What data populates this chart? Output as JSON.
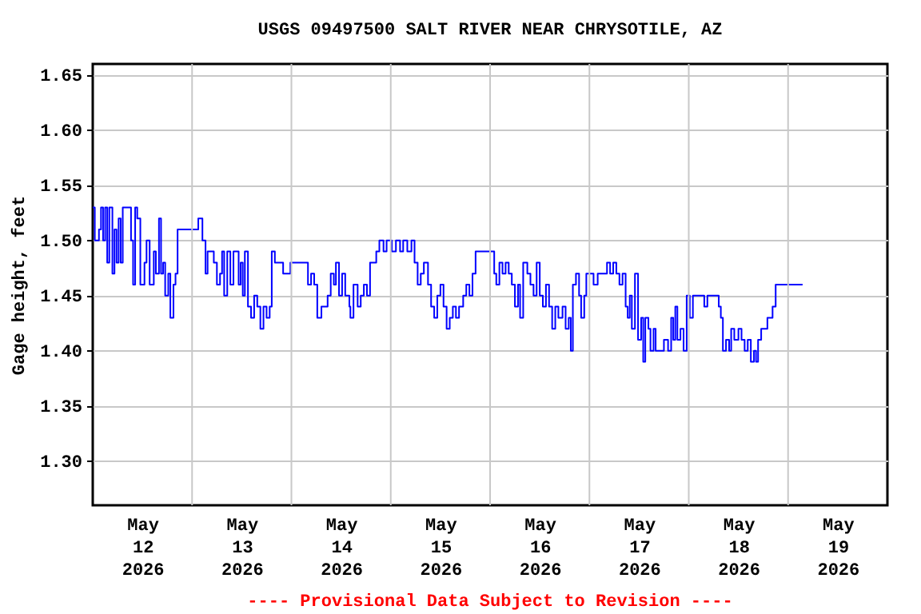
{
  "chart_data": {
    "type": "step",
    "title": "USGS 09497500 SALT RIVER NEAR CHRYSOTILE, AZ",
    "ylabel": "Gage height, feet",
    "annotations": [
      "---- Provisional Data Subject to Revision ----"
    ],
    "grid": true,
    "xlim": [
      "2026-05-12T00:00",
      "2026-05-20T00:00"
    ],
    "xticks": [
      {
        "value": "2026-05-12T12:00",
        "label": "May\n12\n2026"
      },
      {
        "value": "2026-05-13T00:00",
        "label": null
      },
      {
        "value": "2026-05-13T12:00",
        "label": "May\n13\n2026"
      },
      {
        "value": "2026-05-14T00:00",
        "label": null
      },
      {
        "value": "2026-05-14T12:00",
        "label": "May\n14\n2026"
      },
      {
        "value": "2026-05-15T00:00",
        "label": null
      },
      {
        "value": "2026-05-15T12:00",
        "label": "May\n15\n2026"
      },
      {
        "value": "2026-05-16T00:00",
        "label": null
      },
      {
        "value": "2026-05-16T12:00",
        "label": "May\n16\n2026"
      },
      {
        "value": "2026-05-17T00:00",
        "label": null
      },
      {
        "value": "2026-05-17T12:00",
        "label": "May\n17\n2026"
      },
      {
        "value": "2026-05-18T00:00",
        "label": null
      },
      {
        "value": "2026-05-18T12:00",
        "label": "May\n18\n2026"
      },
      {
        "value": "2026-05-19T00:00",
        "label": null
      },
      {
        "value": "2026-05-19T12:00",
        "label": "May\n19\n2026"
      }
    ],
    "ylim": [
      1.26,
      1.66
    ],
    "yticks": [
      {
        "value": 1.3,
        "label": "1.30"
      },
      {
        "value": 1.35,
        "label": "1.35"
      },
      {
        "value": 1.4,
        "label": "1.40"
      },
      {
        "value": 1.45,
        "label": "1.45"
      },
      {
        "value": 1.5,
        "label": "1.50"
      },
      {
        "value": 1.55,
        "label": "1.55"
      },
      {
        "value": 1.6,
        "label": "1.60"
      },
      {
        "value": 1.65,
        "label": "1.65"
      }
    ],
    "series": [
      {
        "color": "#0000ff",
        "x": [
          "2026-05-12T00:00",
          "2026-05-12T00:30",
          "2026-05-12T01:30",
          "2026-05-12T02:00",
          "2026-05-12T02:30",
          "2026-05-12T03:00",
          "2026-05-12T03:30",
          "2026-05-12T04:00",
          "2026-05-12T04:45",
          "2026-05-12T05:15",
          "2026-05-12T05:45",
          "2026-05-12T06:15",
          "2026-05-12T06:45",
          "2026-05-12T07:15",
          "2026-05-12T08:15",
          "2026-05-12T09:15",
          "2026-05-12T09:45",
          "2026-05-12T10:15",
          "2026-05-12T10:45",
          "2026-05-12T11:30",
          "2026-05-12T12:30",
          "2026-05-12T13:00",
          "2026-05-12T13:45",
          "2026-05-12T14:45",
          "2026-05-12T15:15",
          "2026-05-12T16:00",
          "2026-05-12T16:30",
          "2026-05-12T17:00",
          "2026-05-12T17:30",
          "2026-05-12T18:15",
          "2026-05-12T18:45",
          "2026-05-12T19:30",
          "2026-05-12T20:00",
          "2026-05-12T20:30",
          "2026-05-12T21:30",
          "2026-05-13T01:00",
          "2026-05-13T01:30",
          "2026-05-13T02:30",
          "2026-05-13T03:15",
          "2026-05-13T03:45",
          "2026-05-13T04:30",
          "2026-05-13T05:15",
          "2026-05-13T06:00",
          "2026-05-13T06:45",
          "2026-05-13T07:15",
          "2026-05-13T07:45",
          "2026-05-13T08:30",
          "2026-05-13T09:15",
          "2026-05-13T10:00",
          "2026-05-13T10:45",
          "2026-05-13T11:15",
          "2026-05-13T11:45",
          "2026-05-13T12:15",
          "2026-05-13T12:45",
          "2026-05-13T13:30",
          "2026-05-13T14:15",
          "2026-05-13T15:00",
          "2026-05-13T15:45",
          "2026-05-13T16:30",
          "2026-05-13T17:15",
          "2026-05-13T18:00",
          "2026-05-13T18:45",
          "2026-05-13T19:15",
          "2026-05-13T20:00",
          "2026-05-13T21:15",
          "2026-05-13T22:00",
          "2026-05-13T23:00",
          "2026-05-13T23:45",
          "2026-05-14T00:30",
          "2026-05-14T03:00",
          "2026-05-14T04:00",
          "2026-05-14T04:45",
          "2026-05-14T05:30",
          "2026-05-14T06:15",
          "2026-05-14T07:15",
          "2026-05-14T08:00",
          "2026-05-14T08:45",
          "2026-05-14T09:30",
          "2026-05-14T10:15",
          "2026-05-14T10:45",
          "2026-05-14T11:30",
          "2026-05-14T12:15",
          "2026-05-14T13:00",
          "2026-05-14T14:00",
          "2026-05-14T14:15",
          "2026-05-14T15:00",
          "2026-05-14T16:00",
          "2026-05-14T16:45",
          "2026-05-14T17:30",
          "2026-05-14T18:15",
          "2026-05-14T19:00",
          "2026-05-14T19:45",
          "2026-05-14T20:30",
          "2026-05-14T21:15",
          "2026-05-14T22:15",
          "2026-05-14T23:00",
          "2026-05-15T00:15",
          "2026-05-15T01:15",
          "2026-05-15T02:15",
          "2026-05-15T03:00",
          "2026-05-15T04:00",
          "2026-05-15T05:00",
          "2026-05-15T05:45",
          "2026-05-15T06:30",
          "2026-05-15T07:15",
          "2026-05-15T08:00",
          "2026-05-15T09:00",
          "2026-05-15T09:45",
          "2026-05-15T10:30",
          "2026-05-15T11:15",
          "2026-05-15T12:00",
          "2026-05-15T12:45",
          "2026-05-15T13:30",
          "2026-05-15T14:15",
          "2026-05-15T15:00",
          "2026-05-15T15:45",
          "2026-05-15T16:30",
          "2026-05-15T17:30",
          "2026-05-15T18:15",
          "2026-05-15T19:00",
          "2026-05-15T19:45",
          "2026-05-15T20:30",
          "2026-05-15T21:30",
          "2026-05-16T00:00",
          "2026-05-16T01:00",
          "2026-05-16T01:30",
          "2026-05-16T02:15",
          "2026-05-16T03:00",
          "2026-05-16T03:45",
          "2026-05-16T04:30",
          "2026-05-16T05:15",
          "2026-05-16T06:00",
          "2026-05-16T06:45",
          "2026-05-16T07:15",
          "2026-05-16T08:00",
          "2026-05-16T09:00",
          "2026-05-16T09:45",
          "2026-05-16T10:30",
          "2026-05-16T11:15",
          "2026-05-16T12:00",
          "2026-05-16T12:45",
          "2026-05-16T13:30",
          "2026-05-16T14:15",
          "2026-05-16T15:00",
          "2026-05-16T15:45",
          "2026-05-16T16:30",
          "2026-05-16T17:30",
          "2026-05-16T18:15",
          "2026-05-16T19:00",
          "2026-05-16T19:30",
          "2026-05-16T20:00",
          "2026-05-16T20:45",
          "2026-05-16T21:30",
          "2026-05-16T22:00",
          "2026-05-16T22:45",
          "2026-05-16T23:15",
          "2026-05-17T00:30",
          "2026-05-17T01:00",
          "2026-05-17T02:00",
          "2026-05-17T04:15",
          "2026-05-17T05:00",
          "2026-05-17T05:45",
          "2026-05-17T06:30",
          "2026-05-17T07:15",
          "2026-05-17T08:00",
          "2026-05-17T08:45",
          "2026-05-17T09:15",
          "2026-05-17T09:45",
          "2026-05-17T10:15",
          "2026-05-17T11:00",
          "2026-05-17T11:45",
          "2026-05-17T12:30",
          "2026-05-17T13:00",
          "2026-05-17T13:30",
          "2026-05-17T14:15",
          "2026-05-17T14:45",
          "2026-05-17T15:30",
          "2026-05-17T16:00",
          "2026-05-17T17:15",
          "2026-05-17T18:00",
          "2026-05-17T19:00",
          "2026-05-17T19:45",
          "2026-05-17T20:15",
          "2026-05-17T20:45",
          "2026-05-17T21:15",
          "2026-05-17T22:00",
          "2026-05-17T22:45",
          "2026-05-17T23:30",
          "2026-05-18T00:15",
          "2026-05-18T01:00",
          "2026-05-18T02:15",
          "2026-05-18T03:45",
          "2026-05-18T04:30",
          "2026-05-18T06:30",
          "2026-05-18T07:15",
          "2026-05-18T07:45",
          "2026-05-18T08:15",
          "2026-05-18T09:00",
          "2026-05-18T09:45",
          "2026-05-18T10:15",
          "2026-05-18T11:00",
          "2026-05-18T12:00",
          "2026-05-18T12:45",
          "2026-05-18T13:30",
          "2026-05-18T14:15",
          "2026-05-18T15:00",
          "2026-05-18T15:45",
          "2026-05-18T16:15",
          "2026-05-18T16:45",
          "2026-05-18T17:30",
          "2026-05-18T18:15",
          "2026-05-18T19:00",
          "2026-05-18T20:00",
          "2026-05-18T20:15",
          "2026-05-18T21:00",
          "2026-05-19T03:30"
        ],
        "values": [
          1.53,
          1.5,
          1.51,
          1.53,
          1.5,
          1.53,
          1.48,
          1.53,
          1.47,
          1.51,
          1.48,
          1.52,
          1.48,
          1.53,
          1.53,
          1.5,
          1.46,
          1.53,
          1.52,
          1.46,
          1.48,
          1.5,
          1.46,
          1.49,
          1.47,
          1.52,
          1.47,
          1.48,
          1.45,
          1.47,
          1.43,
          1.46,
          1.47,
          1.51,
          1.51,
          1.51,
          1.52,
          1.5,
          1.47,
          1.49,
          1.49,
          1.48,
          1.46,
          1.47,
          1.49,
          1.45,
          1.49,
          1.46,
          1.49,
          1.49,
          1.46,
          1.48,
          1.45,
          1.49,
          1.44,
          1.43,
          1.45,
          1.44,
          1.42,
          1.44,
          1.43,
          1.44,
          1.49,
          1.48,
          1.48,
          1.47,
          1.47,
          1.48,
          1.48,
          1.48,
          1.46,
          1.47,
          1.46,
          1.43,
          1.44,
          1.44,
          1.45,
          1.47,
          1.46,
          1.48,
          1.45,
          1.47,
          1.45,
          1.44,
          1.43,
          1.46,
          1.44,
          1.45,
          1.46,
          1.45,
          1.48,
          1.48,
          1.49,
          1.5,
          1.49,
          1.5,
          1.49,
          1.5,
          1.49,
          1.5,
          1.49,
          1.5,
          1.48,
          1.46,
          1.47,
          1.48,
          1.46,
          1.44,
          1.43,
          1.45,
          1.46,
          1.44,
          1.42,
          1.43,
          1.44,
          1.43,
          1.44,
          1.45,
          1.46,
          1.45,
          1.47,
          1.49,
          1.49,
          1.49,
          1.47,
          1.46,
          1.48,
          1.47,
          1.48,
          1.47,
          1.46,
          1.44,
          1.46,
          1.43,
          1.48,
          1.47,
          1.46,
          1.45,
          1.48,
          1.45,
          1.44,
          1.46,
          1.44,
          1.42,
          1.44,
          1.43,
          1.44,
          1.42,
          1.43,
          1.4,
          1.46,
          1.47,
          1.45,
          1.43,
          1.45,
          1.47,
          1.47,
          1.46,
          1.47,
          1.48,
          1.47,
          1.48,
          1.47,
          1.46,
          1.47,
          1.44,
          1.43,
          1.45,
          1.42,
          1.47,
          1.41,
          1.43,
          1.39,
          1.43,
          1.42,
          1.4,
          1.42,
          1.4,
          1.4,
          1.41,
          1.4,
          1.43,
          1.41,
          1.44,
          1.41,
          1.42,
          1.4,
          1.45,
          1.43,
          1.45,
          1.45,
          1.44,
          1.45,
          1.45,
          1.44,
          1.43,
          1.4,
          1.41,
          1.4,
          1.42,
          1.41,
          1.42,
          1.41,
          1.4,
          1.41,
          1.39,
          1.4,
          1.39,
          1.41,
          1.42,
          1.42,
          1.43,
          1.43,
          1.44,
          1.46,
          1.46
        ]
      }
    ]
  }
}
